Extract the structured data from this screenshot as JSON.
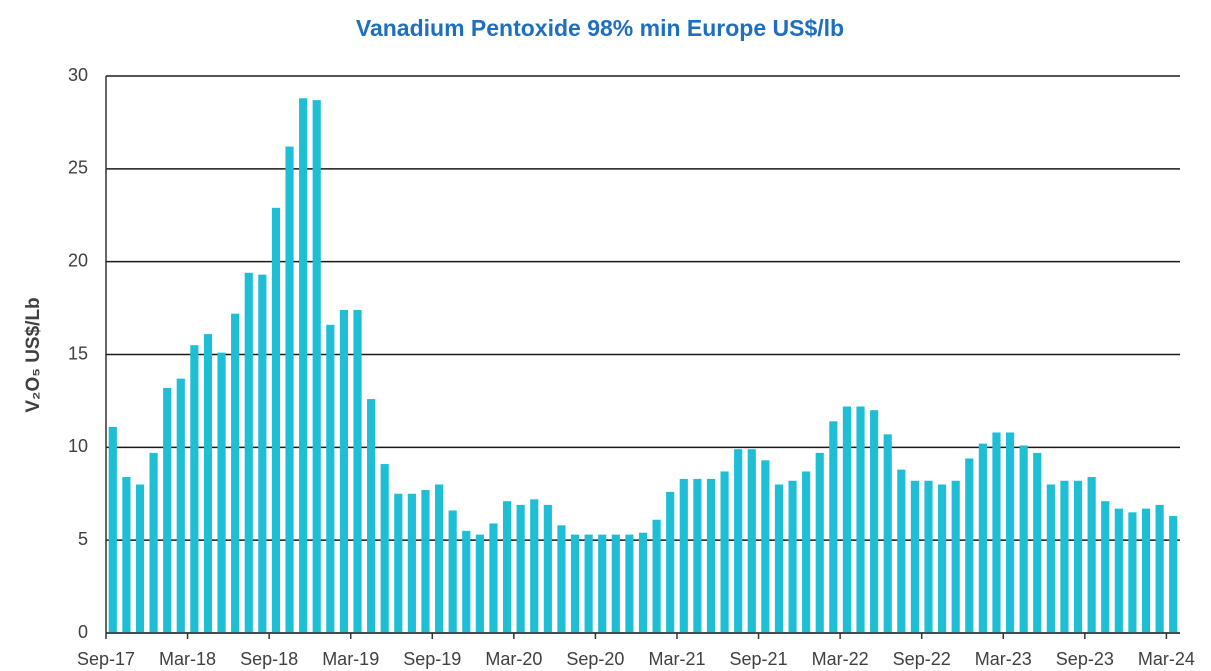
{
  "chart_data": {
    "type": "bar",
    "title": "Vanadium Pentoxide 98% min Europe US$/lb",
    "ylabel": "V₂O₅ US$/Lb",
    "categories": [
      "Sep-17",
      null,
      null,
      null,
      null,
      null,
      "Mar-18",
      null,
      null,
      null,
      null,
      null,
      "Sep-18",
      null,
      null,
      null,
      null,
      null,
      "Mar-19",
      null,
      null,
      null,
      null,
      null,
      "Sep-19",
      null,
      null,
      null,
      null,
      null,
      "Mar-20",
      null,
      null,
      null,
      null,
      null,
      "Sep-20",
      null,
      null,
      null,
      null,
      null,
      "Mar-21",
      null,
      null,
      null,
      null,
      null,
      "Sep-21",
      null,
      null,
      null,
      null,
      null,
      "Mar-22",
      null,
      null,
      null,
      null,
      null,
      "Sep-22",
      null,
      null,
      null,
      null,
      null,
      "Mar-23",
      null,
      null,
      null,
      null,
      null,
      "Sep-23",
      null,
      null,
      null,
      null,
      null,
      "Mar-24"
    ],
    "values": [
      11.1,
      8.4,
      8.0,
      9.7,
      13.2,
      13.7,
      15.5,
      16.1,
      15.1,
      17.2,
      19.4,
      19.3,
      22.9,
      26.2,
      28.8,
      28.7,
      16.6,
      17.4,
      17.4,
      12.6,
      9.1,
      7.5,
      7.5,
      7.7,
      8.0,
      6.6,
      5.5,
      5.3,
      5.9,
      7.1,
      6.9,
      7.2,
      6.9,
      5.8,
      5.3,
      5.3,
      5.3,
      5.3,
      5.3,
      5.4,
      6.1,
      7.6,
      8.3,
      8.3,
      8.3,
      8.7,
      9.9,
      9.9,
      9.3,
      8.0,
      8.2,
      8.7,
      9.7,
      11.4,
      12.2,
      12.2,
      12.0,
      10.7,
      8.8,
      8.2,
      8.2,
      8.0,
      8.2,
      9.4,
      10.2,
      10.8,
      10.8,
      10.1,
      9.7,
      8.0,
      8.2,
      8.2,
      8.4,
      7.1,
      6.7,
      6.5,
      6.7,
      6.9,
      6.3
    ],
    "color": "#1ebfd5",
    "ylim": [
      0,
      30
    ],
    "yticks": [
      0,
      5,
      10,
      15,
      20,
      25,
      30
    ],
    "grid": true
  }
}
